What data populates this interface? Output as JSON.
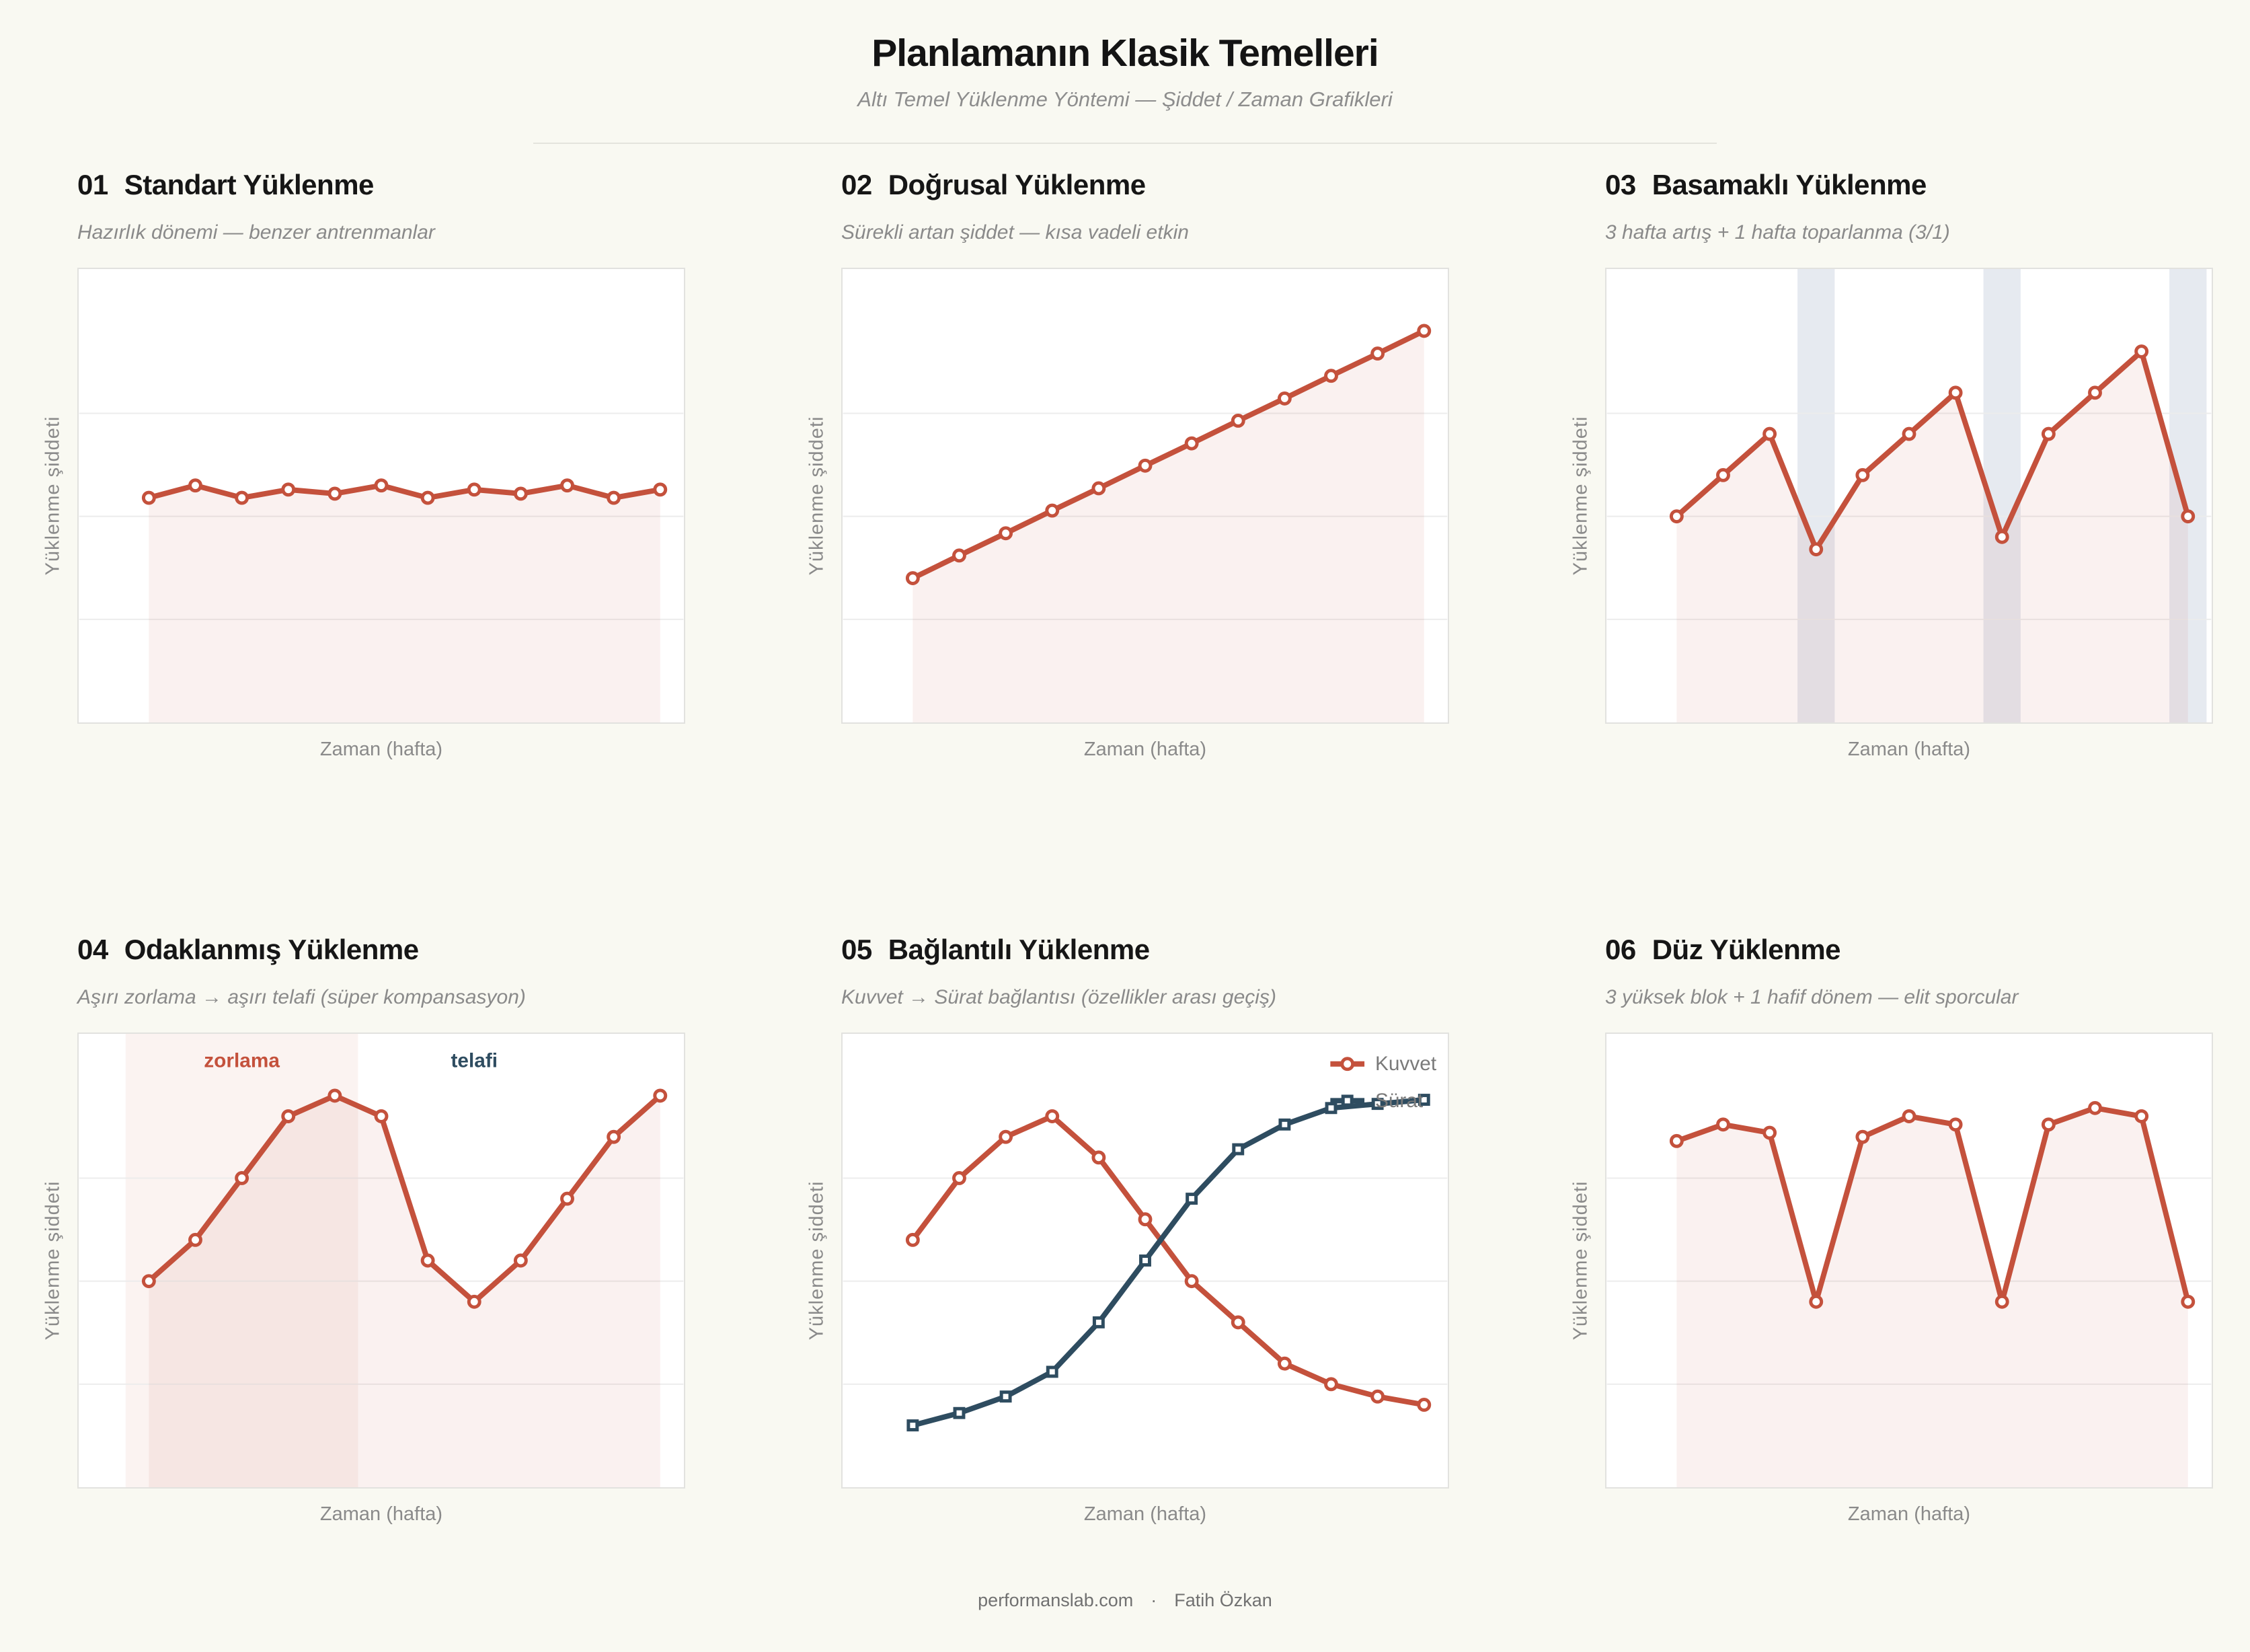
{
  "page": {
    "title": "Planlamanın Klasik Temelleri",
    "subtitle": "Altı Temel Yüklenme Yöntemi — Şiddet / Zaman Grafikleri",
    "footer": {
      "site": "performanslab.com",
      "separator": "·",
      "author": "Fatih Özkan"
    },
    "colors": {
      "background": "#f9f9f2",
      "panel": "#ffffff",
      "accent_red": "#c4513c",
      "accent_navy": "#2e4c60",
      "grid": "#ececec",
      "recovery_band": "rgba(143,160,187,0.22)",
      "overreach_band": "rgba(196,81,60,0.07)",
      "area_fill": "rgba(196,81,60,0.08)",
      "text_dark": "#161616",
      "text_gray": "#8a8a8a"
    }
  },
  "chart_data": [
    {
      "type": "line",
      "number": "01",
      "title": "Standart Yüklenme",
      "subtitle": "Hazırlık dönemi — benzer antrenmanlar",
      "xlabel": "Zaman (hafta)",
      "ylabel": "Yüklenme şiddeti",
      "x": [
        1,
        2,
        3,
        4,
        5,
        6,
        7,
        8,
        9,
        10,
        11,
        12
      ],
      "xlim": [
        -0.5,
        12.5
      ],
      "ylim": [
        0,
        11
      ],
      "grid_y": [
        2.5,
        5,
        7.5
      ],
      "series": [
        {
          "name": "Yüklenme",
          "color": "#c4513c",
          "marker": "circle",
          "line_width": 8,
          "fill": "rgba(196,81,60,0.08)",
          "values": [
            5.45,
            5.75,
            5.45,
            5.65,
            5.55,
            5.75,
            5.45,
            5.65,
            5.55,
            5.75,
            5.45,
            5.65
          ]
        }
      ],
      "bands": [],
      "region_labels": [],
      "legend": false
    },
    {
      "type": "line",
      "number": "02",
      "title": "Doğrusal Yüklenme",
      "subtitle": "Sürekli artan şiddet — kısa vadeli etkin",
      "xlabel": "Zaman (hafta)",
      "ylabel": "Yüklenme şiddeti",
      "x": [
        1,
        2,
        3,
        4,
        5,
        6,
        7,
        8,
        9,
        10,
        11,
        12
      ],
      "xlim": [
        -0.5,
        12.5
      ],
      "ylim": [
        0,
        11
      ],
      "grid_y": [
        2.5,
        5,
        7.5
      ],
      "series": [
        {
          "name": "Yüklenme",
          "color": "#c4513c",
          "marker": "circle",
          "line_width": 8,
          "fill": "rgba(196,81,60,0.08)",
          "values": [
            3.5,
            4.05,
            4.59,
            5.14,
            5.68,
            6.23,
            6.77,
            7.32,
            7.86,
            8.41,
            8.95,
            9.5
          ]
        }
      ],
      "bands": [],
      "region_labels": [],
      "legend": false
    },
    {
      "type": "line",
      "number": "03",
      "title": "Basamaklı Yüklenme",
      "subtitle": "3 hafta artış + 1 hafta toparlanma (3/1)",
      "xlabel": "Zaman (hafta)",
      "ylabel": "Yüklenme şiddeti",
      "x": [
        1,
        2,
        3,
        4,
        5,
        6,
        7,
        8,
        9,
        10,
        11,
        12
      ],
      "xlim": [
        -0.5,
        12.5
      ],
      "ylim": [
        0,
        11
      ],
      "grid_y": [
        2.5,
        5,
        7.5
      ],
      "series": [
        {
          "name": "Yüklenme",
          "color": "#c4513c",
          "marker": "circle",
          "line_width": 8,
          "fill": "rgba(196,81,60,0.08)",
          "values": [
            5,
            6,
            7,
            4.2,
            6,
            7,
            8,
            4.5,
            7,
            8,
            9,
            5
          ]
        }
      ],
      "bands": [
        {
          "name": "toparlanma-1",
          "from": 3.6,
          "to": 4.4,
          "color": "rgba(143,160,187,0.22)"
        },
        {
          "name": "toparlanma-2",
          "from": 7.6,
          "to": 8.4,
          "color": "rgba(143,160,187,0.22)"
        },
        {
          "name": "toparlanma-3",
          "from": 11.6,
          "to": 12.4,
          "color": "rgba(143,160,187,0.22)"
        }
      ],
      "region_labels": [],
      "legend": false
    },
    {
      "type": "line",
      "number": "04",
      "title": "Odaklanmış Yüklenme",
      "subtitle": "Aşırı zorlama → aşırı telafi (süper kompansasyon)",
      "xlabel": "Zaman (hafta)",
      "ylabel": "Yüklenme şiddeti",
      "x": [
        1,
        2,
        3,
        4,
        5,
        6,
        7,
        8,
        9,
        10,
        11,
        12
      ],
      "xlim": [
        -0.5,
        12.5
      ],
      "ylim": [
        0,
        11
      ],
      "grid_y": [
        2.5,
        5,
        7.5
      ],
      "series": [
        {
          "name": "Yüklenme",
          "color": "#c4513c",
          "marker": "circle",
          "line_width": 8,
          "fill": "rgba(196,81,60,0.08)",
          "values": [
            5,
            6,
            7.5,
            9,
            9.5,
            9,
            5.5,
            4.5,
            5.5,
            7,
            8.5,
            9.5
          ]
        }
      ],
      "bands": [
        {
          "name": "zorlama-bolgesi",
          "from": 0.5,
          "to": 5.5,
          "color": "rgba(196,81,60,0.07)"
        }
      ],
      "region_labels": [
        {
          "text": "zorlama",
          "week": 3,
          "value": 10.35,
          "color": "#c4513c"
        },
        {
          "text": "telafi",
          "week": 8,
          "value": 10.35,
          "color": "#2e4c60"
        }
      ],
      "legend": false
    },
    {
      "type": "line",
      "number": "05",
      "title": "Bağlantılı Yüklenme",
      "subtitle": "Kuvvet → Sürat bağlantısı (özellikler arası geçiş)",
      "xlabel": "Zaman (hafta)",
      "ylabel": "Yüklenme şiddeti",
      "x": [
        1,
        2,
        3,
        4,
        5,
        6,
        7,
        8,
        9,
        10,
        11,
        12
      ],
      "xlim": [
        -0.5,
        12.5
      ],
      "ylim": [
        0,
        11
      ],
      "grid_y": [
        2.5,
        5,
        7.5
      ],
      "series": [
        {
          "name": "Kuvvet",
          "color": "#c4513c",
          "marker": "circle",
          "line_width": 8,
          "fill": null,
          "values": [
            6,
            7.5,
            8.5,
            9,
            8,
            6.5,
            5,
            4,
            3,
            2.5,
            2.2,
            2
          ]
        },
        {
          "name": "Sürat",
          "color": "#2e4c60",
          "marker": "square",
          "line_width": 8,
          "fill": null,
          "values": [
            1.5,
            1.8,
            2.2,
            2.8,
            4,
            5.5,
            7,
            8.2,
            8.8,
            9.2,
            9.3,
            9.4
          ]
        }
      ],
      "bands": [],
      "region_labels": [],
      "legend": true
    },
    {
      "type": "line",
      "number": "06",
      "title": "Düz Yüklenme",
      "subtitle": "3 yüksek blok + 1 hafif dönem — elit sporcular",
      "xlabel": "Zaman (hafta)",
      "ylabel": "Yüklenme şiddeti",
      "x": [
        1,
        2,
        3,
        4,
        5,
        6,
        7,
        8,
        9,
        10,
        11,
        12
      ],
      "xlim": [
        -0.5,
        12.5
      ],
      "ylim": [
        0,
        11
      ],
      "grid_y": [
        2.5,
        5,
        7.5
      ],
      "series": [
        {
          "name": "Yüklenme",
          "color": "#c4513c",
          "marker": "circle",
          "line_width": 8,
          "fill": "rgba(196,81,60,0.08)",
          "values": [
            8.4,
            8.8,
            8.6,
            4.5,
            8.5,
            9,
            8.8,
            4.5,
            8.8,
            9.2,
            9,
            4.5
          ]
        }
      ],
      "bands": [],
      "region_labels": [],
      "legend": false
    }
  ]
}
